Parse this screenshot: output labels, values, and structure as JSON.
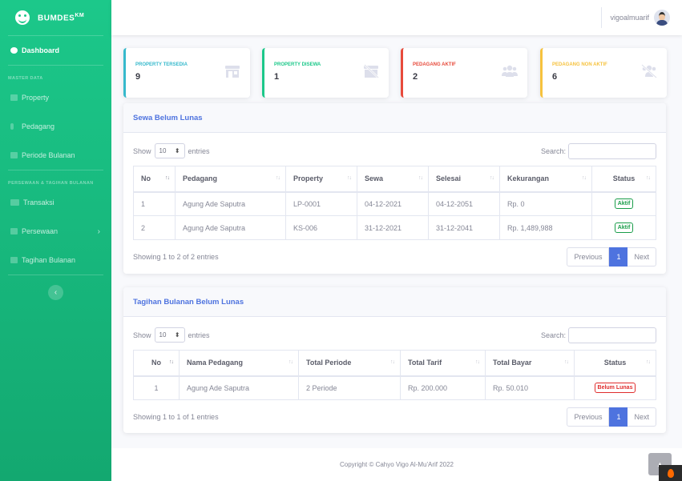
{
  "brand": {
    "name": "BUMDES",
    "sup": "KM"
  },
  "sidebar": {
    "dashboard": "Dashboard",
    "heading_master": "MASTER DATA",
    "property": "Property",
    "pedagang": "Pedagang",
    "periode": "Periode Bulanan",
    "heading_sewa": "PERSEWAAN & TAGIHAN BULANAN",
    "transaksi": "Transaksi",
    "persewaan": "Persewaan",
    "tagihan": "Tagihan Bulanan",
    "toggle": "‹"
  },
  "topbar": {
    "username": "vigoalmuarif"
  },
  "stats": [
    {
      "label": "PROPERTY TERSEDIA",
      "value": "9",
      "icon": "store-icon",
      "color": "#36b9cc"
    },
    {
      "label": "PROPERTY DISEWA",
      "value": "1",
      "icon": "store-slash-icon",
      "color": "#1cc88a"
    },
    {
      "label": "PEDAGANG AKTIF",
      "value": "2",
      "icon": "users-icon",
      "color": "#e74a3b"
    },
    {
      "label": "PEDAGANG NON AKTIF",
      "value": "6",
      "icon": "users-slash-icon",
      "color": "#f6c23e"
    }
  ],
  "sewa": {
    "title": "Sewa Belum Lunas",
    "show": "Show",
    "length": "10",
    "entries": "entries",
    "search": "Search:",
    "headers": [
      "No",
      "Pedagang",
      "Property",
      "Sewa",
      "Selesai",
      "Kekurangan",
      "Status"
    ],
    "rows": [
      {
        "no": "1",
        "pedagang": "Agung Ade Saputra",
        "property": "LP-0001",
        "sewa": "04-12-2021",
        "selesai": "04-12-2051",
        "kekurangan": "Rp. 0",
        "status": "Aktif"
      },
      {
        "no": "2",
        "pedagang": "Agung Ade Saputra",
        "property": "KS-006",
        "sewa": "31-12-2021",
        "selesai": "31-12-2041",
        "kekurangan": "Rp. 1,489,988",
        "status": "Aktif"
      }
    ],
    "info": "Showing 1 to 2 of 2 entries",
    "prev": "Previous",
    "page": "1",
    "next": "Next"
  },
  "tagihan": {
    "title": "Tagihan Bulanan Belum Lunas",
    "show": "Show",
    "length": "10",
    "entries": "entries",
    "search": "Search:",
    "headers": [
      "No",
      "Nama Pedagang",
      "Total Periode",
      "Total Tarif",
      "Total Bayar",
      "Status"
    ],
    "rows": [
      {
        "no": "1",
        "nama": "Agung Ade Saputra",
        "periode": "2 Periode",
        "tarif": "Rp. 200.000",
        "bayar": "Rp. 50.010",
        "status": "Belum Lunas"
      }
    ],
    "info": "Showing 1 to 1 of 1 entries",
    "prev": "Previous",
    "page": "1",
    "next": "Next"
  },
  "footer": {
    "copyright": "Copyright © Cahyo Vigo Al-Mu'Arif 2022"
  },
  "colors": {
    "primary": "#4e73df",
    "success": "#1cc88a",
    "info": "#36b9cc",
    "danger": "#e74a3b",
    "warning": "#f6c23e"
  }
}
